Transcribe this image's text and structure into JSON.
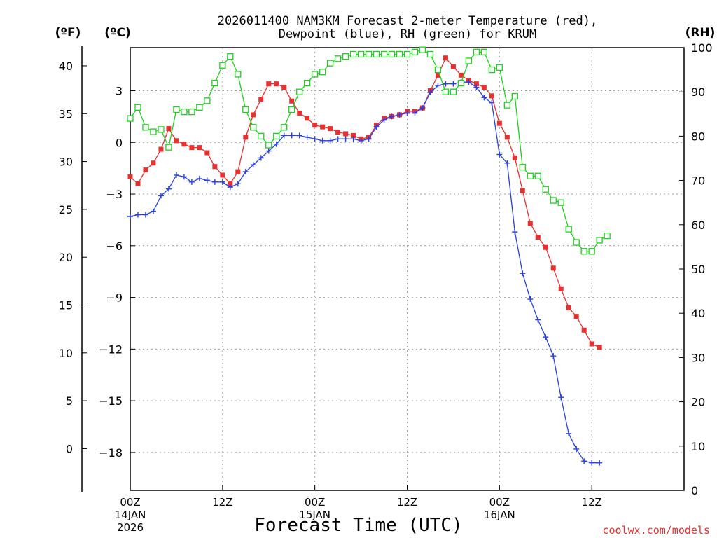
{
  "chart_data": {
    "type": "line",
    "title_lines": [
      "2026011400 NAM3KM Forecast 2-meter Temperature (red),",
      "Dewpoint (blue), RH (green) for KRUM"
    ],
    "unit_labels": {
      "fahrenheit": "(ºF)",
      "celsius": "(ºC)",
      "rh": "(RH)"
    },
    "xlabel": "Forecast Time (UTC)",
    "credit": "coolwx.com/models",
    "x_unit": "forecast hour",
    "xlim": [
      0,
      36
    ],
    "x_ticks": [
      {
        "x": 0,
        "label": "00Z",
        "date": "14JAN",
        "year": "2026"
      },
      {
        "x": 6,
        "label": "12Z"
      },
      {
        "x": 12,
        "label": "00Z",
        "date": "15JAN"
      },
      {
        "x": 18,
        "label": "12Z"
      },
      {
        "x": 24,
        "label": "00Z",
        "date": "16JAN"
      },
      {
        "x": 30,
        "label": "12Z"
      }
    ],
    "celsius_axis": {
      "lim": [
        -20.2,
        5.5
      ],
      "ticks": [
        3,
        0,
        -3,
        -6,
        -9,
        -12,
        -15,
        -18
      ],
      "tick_labels": [
        "3",
        "0",
        "−3",
        "−6",
        "−9",
        "−12",
        "−15",
        "−18"
      ]
    },
    "fahrenheit_axis": {
      "ticks": [
        40,
        35,
        30,
        25,
        20,
        15,
        10,
        5,
        0
      ],
      "tick_labels": [
        "40",
        "35",
        "30",
        "25",
        "20",
        "15",
        "10",
        "5",
        "0"
      ]
    },
    "rh_axis": {
      "lim": [
        0,
        100
      ],
      "ticks": [
        100,
        90,
        80,
        70,
        60,
        50,
        40,
        30,
        20,
        10,
        0
      ],
      "tick_labels": [
        "100",
        "90",
        "80",
        "70",
        "60",
        "50",
        "40",
        "30",
        "20",
        "10",
        "0"
      ]
    },
    "grid": true,
    "series": [
      {
        "name": "Temperature",
        "axis": "celsius",
        "color": "#e83030",
        "marker": "filled-square",
        "values": [
          [
            0,
            -2.0
          ],
          [
            0.5,
            -2.4
          ],
          [
            1,
            -1.6
          ],
          [
            1.5,
            -1.2
          ],
          [
            2,
            -0.4
          ],
          [
            2.5,
            0.8
          ],
          [
            3,
            0.1
          ],
          [
            3.5,
            -0.1
          ],
          [
            4,
            -0.3
          ],
          [
            4.5,
            -0.3
          ],
          [
            5,
            -0.6
          ],
          [
            5.5,
            -1.4
          ],
          [
            6,
            -1.9
          ],
          [
            6.5,
            -2.4
          ],
          [
            7,
            -1.7
          ],
          [
            7.5,
            0.3
          ],
          [
            8,
            1.6
          ],
          [
            8.5,
            2.5
          ],
          [
            9,
            3.4
          ],
          [
            9.5,
            3.4
          ],
          [
            10,
            3.2
          ],
          [
            10.5,
            2.4
          ],
          [
            11,
            1.7
          ],
          [
            11.5,
            1.4
          ],
          [
            12,
            1.0
          ],
          [
            12.5,
            0.9
          ],
          [
            13,
            0.8
          ],
          [
            13.5,
            0.6
          ],
          [
            14,
            0.5
          ],
          [
            14.5,
            0.4
          ],
          [
            15,
            0.2
          ],
          [
            15.5,
            0.3
          ],
          [
            16,
            1.0
          ],
          [
            16.5,
            1.4
          ],
          [
            17,
            1.5
          ],
          [
            17.5,
            1.6
          ],
          [
            18,
            1.8
          ],
          [
            18.5,
            1.8
          ],
          [
            19,
            2.0
          ],
          [
            19.5,
            3.0
          ],
          [
            20,
            3.9
          ],
          [
            20.5,
            4.9
          ],
          [
            21,
            4.4
          ],
          [
            21.5,
            3.9
          ],
          [
            22,
            3.6
          ],
          [
            22.5,
            3.4
          ],
          [
            23,
            3.2
          ],
          [
            23.5,
            2.7
          ],
          [
            24,
            1.1
          ],
          [
            24.5,
            0.3
          ],
          [
            25,
            -0.9
          ],
          [
            25.5,
            -2.8
          ],
          [
            26,
            -4.7
          ],
          [
            26.5,
            -5.5
          ],
          [
            27,
            -6.1
          ],
          [
            27.5,
            -7.3
          ],
          [
            28,
            -8.5
          ],
          [
            28.5,
            -9.6
          ],
          [
            29,
            -10.1
          ],
          [
            29.5,
            -10.9
          ],
          [
            30,
            -11.7
          ],
          [
            30.5,
            -11.9
          ]
        ]
      },
      {
        "name": "Dewpoint",
        "axis": "celsius",
        "color": "#2a40e0",
        "marker": "plus",
        "values": [
          [
            0,
            -4.3
          ],
          [
            0.5,
            -4.2
          ],
          [
            1,
            -4.2
          ],
          [
            1.5,
            -4.0
          ],
          [
            2,
            -3.1
          ],
          [
            2.5,
            -2.7
          ],
          [
            3,
            -1.9
          ],
          [
            3.5,
            -2.0
          ],
          [
            4,
            -2.3
          ],
          [
            4.5,
            -2.1
          ],
          [
            5,
            -2.2
          ],
          [
            5.5,
            -2.3
          ],
          [
            6,
            -2.3
          ],
          [
            6.5,
            -2.6
          ],
          [
            7,
            -2.4
          ],
          [
            7.5,
            -1.7
          ],
          [
            8,
            -1.3
          ],
          [
            8.5,
            -0.9
          ],
          [
            9,
            -0.5
          ],
          [
            9.5,
            -0.1
          ],
          [
            10,
            0.4
          ],
          [
            10.5,
            0.4
          ],
          [
            11,
            0.4
          ],
          [
            11.5,
            0.3
          ],
          [
            12,
            0.2
          ],
          [
            12.5,
            0.1
          ],
          [
            13,
            0.1
          ],
          [
            13.5,
            0.2
          ],
          [
            14,
            0.2
          ],
          [
            14.5,
            0.2
          ],
          [
            15,
            0.1
          ],
          [
            15.5,
            0.2
          ],
          [
            16,
            0.9
          ],
          [
            16.5,
            1.3
          ],
          [
            17,
            1.5
          ],
          [
            17.5,
            1.6
          ],
          [
            18,
            1.7
          ],
          [
            18.5,
            1.7
          ],
          [
            19,
            2.0
          ],
          [
            19.5,
            2.9
          ],
          [
            20,
            3.3
          ],
          [
            20.5,
            3.4
          ],
          [
            21,
            3.4
          ],
          [
            21.5,
            3.5
          ],
          [
            22,
            3.5
          ],
          [
            22.5,
            3.2
          ],
          [
            23,
            2.6
          ],
          [
            23.5,
            2.3
          ],
          [
            24,
            -0.7
          ],
          [
            24.5,
            -1.2
          ],
          [
            25,
            -5.2
          ],
          [
            25.5,
            -7.6
          ],
          [
            26,
            -9.1
          ],
          [
            26.5,
            -10.3
          ],
          [
            27,
            -11.3
          ],
          [
            27.5,
            -12.4
          ],
          [
            28,
            -14.8
          ],
          [
            28.5,
            -16.9
          ],
          [
            29,
            -17.8
          ],
          [
            29.5,
            -18.5
          ],
          [
            30,
            -18.6
          ],
          [
            30.5,
            -18.6
          ]
        ]
      },
      {
        "name": "RH",
        "axis": "rh",
        "color": "#20d020",
        "marker": "open-square",
        "values": [
          [
            0,
            84
          ],
          [
            0.5,
            86.5
          ],
          [
            1,
            82
          ],
          [
            1.5,
            81
          ],
          [
            2,
            81.5
          ],
          [
            2.5,
            77.5
          ],
          [
            3,
            86
          ],
          [
            3.5,
            85.5
          ],
          [
            4,
            85.5
          ],
          [
            4.5,
            86.5
          ],
          [
            5,
            88
          ],
          [
            5.5,
            92
          ],
          [
            6,
            96
          ],
          [
            6.5,
            98
          ],
          [
            7,
            94
          ],
          [
            7.5,
            86
          ],
          [
            8,
            82
          ],
          [
            8.5,
            80
          ],
          [
            9,
            78
          ],
          [
            9.5,
            80
          ],
          [
            10,
            82
          ],
          [
            10.5,
            86
          ],
          [
            11,
            90
          ],
          [
            11.5,
            92
          ],
          [
            12,
            94
          ],
          [
            12.5,
            94.5
          ],
          [
            13,
            96.5
          ],
          [
            13.5,
            97.5
          ],
          [
            14,
            98
          ],
          [
            14.5,
            98.5
          ],
          [
            15,
            98.5
          ],
          [
            15.5,
            98.5
          ],
          [
            16,
            98.5
          ],
          [
            16.5,
            98.5
          ],
          [
            17,
            98.5
          ],
          [
            17.5,
            98.5
          ],
          [
            18,
            98.5
          ],
          [
            18.5,
            99
          ],
          [
            19,
            99.5
          ],
          [
            19.5,
            98.5
          ],
          [
            20,
            95
          ],
          [
            20.5,
            90
          ],
          [
            21,
            90
          ],
          [
            21.5,
            92
          ],
          [
            22,
            97
          ],
          [
            22.5,
            99
          ],
          [
            23,
            99
          ],
          [
            23.5,
            95
          ],
          [
            24,
            95.5
          ],
          [
            24.5,
            87
          ],
          [
            25,
            89
          ],
          [
            25.5,
            73
          ],
          [
            26,
            71
          ],
          [
            26.5,
            71
          ],
          [
            27,
            68
          ],
          [
            27.5,
            65.5
          ],
          [
            28,
            65
          ],
          [
            28.5,
            59
          ],
          [
            29,
            56
          ],
          [
            29.5,
            54
          ],
          [
            30,
            54
          ],
          [
            30.5,
            56.5
          ],
          [
            31,
            57.5
          ]
        ]
      }
    ]
  }
}
